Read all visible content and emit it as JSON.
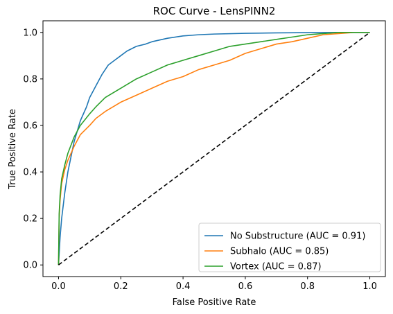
{
  "chart_data": {
    "type": "line",
    "title": "ROC Curve - LensPINN2",
    "xlabel": "False Positive Rate",
    "ylabel": "True Positive Rate",
    "xlim": [
      -0.05,
      1.05
    ],
    "ylim": [
      -0.05,
      1.05
    ],
    "x_ticks": [
      "0.0",
      "0.2",
      "0.4",
      "0.6",
      "0.8",
      "1.0"
    ],
    "y_ticks": [
      "0.0",
      "0.2",
      "0.4",
      "0.6",
      "0.8",
      "1.0"
    ],
    "grid": false,
    "legend_position": "bottom-right",
    "series": [
      {
        "name": "No Substructure (AUC = 0.91)",
        "color": "#1f77b4",
        "x": [
          0.0,
          0.005,
          0.01,
          0.02,
          0.03,
          0.05,
          0.07,
          0.09,
          0.1,
          0.12,
          0.14,
          0.16,
          0.18,
          0.2,
          0.22,
          0.25,
          0.28,
          0.3,
          0.35,
          0.4,
          0.45,
          0.5,
          0.6,
          0.7,
          0.8,
          0.9,
          1.0
        ],
        "y": [
          0.0,
          0.12,
          0.2,
          0.31,
          0.4,
          0.53,
          0.62,
          0.68,
          0.72,
          0.77,
          0.82,
          0.86,
          0.88,
          0.9,
          0.92,
          0.94,
          0.95,
          0.96,
          0.975,
          0.985,
          0.99,
          0.993,
          0.996,
          0.998,
          0.999,
          1.0,
          1.0
        ]
      },
      {
        "name": "Subhalo (AUC = 0.85)",
        "color": "#ff7f0e",
        "x": [
          0.0,
          0.002,
          0.005,
          0.01,
          0.02,
          0.03,
          0.05,
          0.07,
          0.1,
          0.12,
          0.15,
          0.2,
          0.25,
          0.3,
          0.35,
          0.4,
          0.45,
          0.5,
          0.55,
          0.6,
          0.65,
          0.7,
          0.75,
          0.8,
          0.85,
          0.9,
          0.95,
          1.0
        ],
        "y": [
          0.0,
          0.2,
          0.28,
          0.35,
          0.41,
          0.45,
          0.51,
          0.56,
          0.6,
          0.63,
          0.66,
          0.7,
          0.73,
          0.76,
          0.79,
          0.81,
          0.84,
          0.86,
          0.88,
          0.91,
          0.93,
          0.95,
          0.96,
          0.975,
          0.99,
          0.995,
          1.0,
          1.0
        ]
      },
      {
        "name": "Vortex (AUC = 0.87)",
        "color": "#2ca02c",
        "x": [
          0.0,
          0.002,
          0.005,
          0.01,
          0.02,
          0.03,
          0.05,
          0.07,
          0.1,
          0.12,
          0.15,
          0.2,
          0.25,
          0.3,
          0.35,
          0.4,
          0.45,
          0.5,
          0.55,
          0.6,
          0.65,
          0.7,
          0.75,
          0.8,
          0.85,
          0.9,
          0.95,
          1.0
        ],
        "y": [
          0.0,
          0.22,
          0.3,
          0.37,
          0.43,
          0.48,
          0.55,
          0.6,
          0.65,
          0.68,
          0.72,
          0.76,
          0.8,
          0.83,
          0.86,
          0.88,
          0.9,
          0.92,
          0.94,
          0.95,
          0.96,
          0.97,
          0.98,
          0.99,
          0.995,
          1.0,
          1.0,
          1.0
        ]
      },
      {
        "name": "",
        "color": "#000000",
        "dashed": true,
        "x": [
          0.0,
          1.0
        ],
        "y": [
          0.0,
          1.0
        ]
      }
    ]
  }
}
